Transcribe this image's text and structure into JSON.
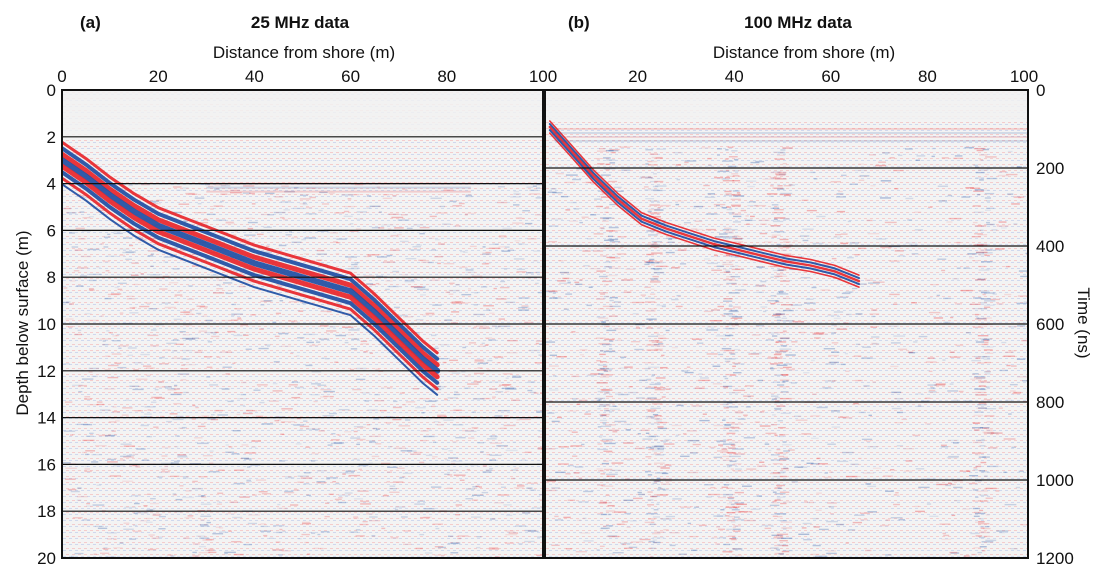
{
  "colors": {
    "positive": "#e8262b",
    "negative": "#1f4ea3",
    "background": "#f4f4f4",
    "grid": "#111111"
  },
  "chart_data": [
    {
      "type": "heatmap",
      "panel_label": "(a)",
      "title": "25 MHz data",
      "xlabel": "Distance from shore (m)",
      "ylabel": "Depth below surface (m)",
      "xticks": [
        "0",
        "20",
        "40",
        "60",
        "80",
        "100"
      ],
      "yticks": [
        "0",
        "2",
        "4",
        "6",
        "8",
        "10",
        "12",
        "14",
        "16",
        "18",
        "20"
      ],
      "xlim": [
        0,
        100
      ],
      "ylim": [
        0,
        20
      ],
      "grid": "horizontal",
      "reflector": {
        "x": [
          0,
          5,
          10,
          15,
          20,
          25,
          30,
          35,
          40,
          45,
          50,
          55,
          60,
          65,
          70,
          75,
          78
        ],
        "y": [
          3.0,
          3.7,
          4.5,
          5.2,
          5.8,
          6.2,
          6.6,
          7.0,
          7.4,
          7.7,
          8.0,
          8.3,
          8.6,
          9.5,
          10.5,
          11.5,
          12.0
        ]
      }
    },
    {
      "type": "heatmap",
      "panel_label": "(b)",
      "title": "100 MHz data",
      "xlabel": "Distance from shore (m)",
      "ylabel": "Time (ns)",
      "xticks": [
        "20",
        "40",
        "60",
        "80",
        "100"
      ],
      "yticks": [
        "0",
        "200",
        "400",
        "600",
        "800",
        "1000",
        "1200"
      ],
      "xlim": [
        0,
        100
      ],
      "ylim": [
        0,
        1200
      ],
      "grid": "horizontal",
      "reflector": {
        "x": [
          1,
          5,
          10,
          15,
          20,
          25,
          30,
          35,
          40,
          45,
          50,
          55,
          60,
          63,
          65
        ],
        "y": [
          95,
          150,
          220,
          280,
          330,
          355,
          375,
          395,
          410,
          425,
          440,
          450,
          465,
          480,
          490
        ]
      }
    }
  ]
}
